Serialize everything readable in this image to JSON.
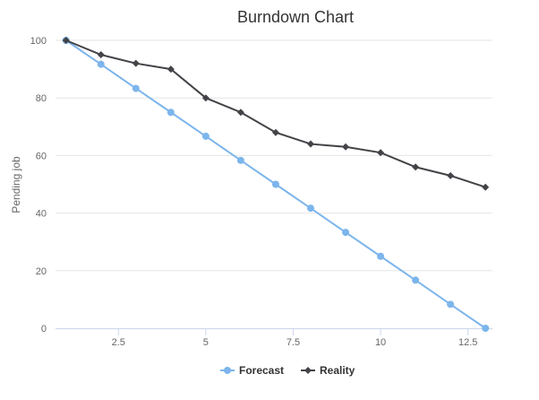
{
  "chart_data": {
    "type": "line",
    "title": "Burndown Chart",
    "xlabel": "",
    "ylabel": "Pending job",
    "xlim": [
      0.7,
      13.2
    ],
    "ylim": [
      0,
      100
    ],
    "x_ticks": [
      "2.5",
      "5",
      "7.5",
      "10",
      "12.5"
    ],
    "y_ticks": [
      "0",
      "20",
      "40",
      "60",
      "80",
      "100"
    ],
    "grid": "horizontal",
    "legend_position": "bottom-center",
    "series": [
      {
        "name": "Forecast",
        "color": "#7cb5ec",
        "marker": "circle",
        "x": [
          1,
          2,
          3,
          4,
          5,
          6,
          7,
          8,
          9,
          10,
          11,
          12,
          13
        ],
        "values": [
          100,
          91.7,
          83.3,
          75,
          66.7,
          58.3,
          50,
          41.7,
          33.3,
          25,
          16.7,
          8.3,
          0
        ]
      },
      {
        "name": "Reality",
        "color": "#434348",
        "marker": "diamond",
        "x": [
          1,
          2,
          3,
          4,
          5,
          6,
          7,
          8,
          9,
          10,
          11,
          12,
          13
        ],
        "values": [
          100,
          95,
          92,
          90,
          80,
          75,
          68,
          64,
          63,
          61,
          56,
          53,
          49
        ]
      }
    ]
  }
}
